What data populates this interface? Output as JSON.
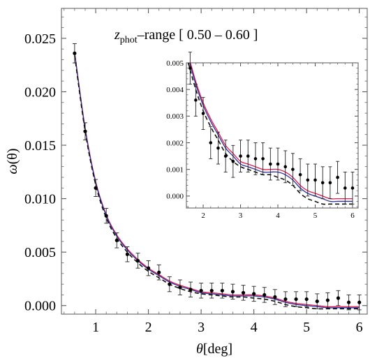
{
  "chart_data": [
    {
      "type": "scatter",
      "panel": "main",
      "title_prefix": "z",
      "title_subscript": "phot",
      "title_suffix": "–range [ 0.50 – 0.60 ]",
      "xlabel_symbol": "θ",
      "xlabel_unit": "[deg]",
      "ylabel_symbol": "ω",
      "ylabel_arg": "(θ)",
      "xlim": [
        0.35,
        6.15
      ],
      "ylim": [
        -0.0008,
        0.0278
      ],
      "xticks": [
        1,
        2,
        3,
        4,
        5,
        6
      ],
      "xtick_labels": [
        "1",
        "2",
        "3",
        "4",
        "5",
        "6"
      ],
      "yticks": [
        0.0,
        0.005,
        0.01,
        0.015,
        0.02,
        0.025
      ],
      "ytick_labels": [
        "0.000",
        "0.005",
        "0.010",
        "0.015",
        "0.020",
        "0.025"
      ],
      "points": {
        "x": [
          0.6,
          0.8,
          1.0,
          1.2,
          1.4,
          1.6,
          1.8,
          2.0,
          2.2,
          2.4,
          2.6,
          2.8,
          3.0,
          3.2,
          3.4,
          3.6,
          3.8,
          4.0,
          4.2,
          4.4,
          4.6,
          4.8,
          5.0,
          5.2,
          5.4,
          5.6,
          5.8,
          6.0
        ],
        "y": [
          0.0236,
          0.0163,
          0.011,
          0.0084,
          0.0061,
          0.0048,
          0.0042,
          0.0035,
          0.0031,
          0.002,
          0.0017,
          0.0015,
          0.0014,
          0.0014,
          0.0014,
          0.0013,
          0.0012,
          0.0011,
          0.001,
          0.0008,
          0.0006,
          0.0006,
          0.0006,
          0.0004,
          0.0005,
          0.0007,
          0.0003,
          0.0003
        ],
        "err": [
          0.0009,
          0.0008,
          0.0008,
          0.0007,
          0.0007,
          0.0007,
          0.0007,
          0.0007,
          0.0007,
          0.0007,
          0.0007,
          0.0007,
          0.0007,
          0.0007,
          0.0007,
          0.0007,
          0.0007,
          0.0007,
          0.0007,
          0.0007,
          0.0007,
          0.0007,
          0.0007,
          0.0007,
          0.0007,
          0.0007,
          0.0007,
          0.0007
        ]
      },
      "curves": [
        {
          "style": "solid",
          "color": "#e0194d",
          "x": [
            0.6,
            0.8,
            1.0,
            1.2,
            1.4,
            1.6,
            1.8,
            2.0,
            2.2,
            2.4,
            2.6,
            2.8,
            3.0,
            3.2,
            3.4,
            3.6,
            3.8,
            4.0,
            4.2,
            4.4,
            4.6,
            4.8,
            5.0,
            5.2,
            5.4,
            5.6,
            5.8,
            6.0
          ],
          "y": [
            0.0237,
            0.0166,
            0.0116,
            0.0085,
            0.0066,
            0.0053,
            0.0043,
            0.0035,
            0.0029,
            0.0023,
            0.0019,
            0.0016,
            0.0013,
            0.0012,
            0.0011,
            0.001,
            0.001,
            0.001,
            0.0009,
            0.0007,
            0.0004,
            0.0002,
            0.0001,
            0.0,
            -0.0001,
            -0.0001,
            -0.0001,
            -0.0001
          ]
        },
        {
          "style": "solid",
          "color": "#2b2f9e",
          "x": [
            0.6,
            0.8,
            1.0,
            1.2,
            1.4,
            1.6,
            1.8,
            2.0,
            2.2,
            2.4,
            2.6,
            2.8,
            3.0,
            3.2,
            3.4,
            3.6,
            3.8,
            4.0,
            4.2,
            4.4,
            4.6,
            4.8,
            5.0,
            5.2,
            5.4,
            5.6,
            5.8,
            6.0
          ],
          "y": [
            0.0236,
            0.0165,
            0.0115,
            0.0084,
            0.0065,
            0.0052,
            0.0042,
            0.0034,
            0.0028,
            0.0022,
            0.0018,
            0.0015,
            0.0012,
            0.0011,
            0.001,
            0.0009,
            0.0009,
            0.0009,
            0.0008,
            0.0006,
            0.0003,
            0.0001,
            0.0,
            -0.0001,
            -0.0002,
            -0.0002,
            -0.0002,
            -0.0002
          ]
        },
        {
          "style": "dashed",
          "color": "#111111",
          "x": [
            0.6,
            0.8,
            1.0,
            1.2,
            1.4,
            1.6,
            1.8,
            2.0,
            2.2,
            2.4,
            2.6,
            2.8,
            3.0,
            3.2,
            3.4,
            3.6,
            3.8,
            4.0,
            4.2,
            4.4,
            4.6,
            4.8,
            5.0,
            5.2,
            5.4,
            5.6,
            5.8,
            6.0
          ],
          "y": [
            0.0234,
            0.0163,
            0.0113,
            0.0082,
            0.0063,
            0.005,
            0.004,
            0.0032,
            0.0026,
            0.002,
            0.0016,
            0.0013,
            0.0011,
            0.001,
            0.0009,
            0.0008,
            0.0008,
            0.0007,
            0.0006,
            0.0004,
            0.0001,
            -0.0001,
            -0.0002,
            -0.0003,
            -0.0003,
            -0.0003,
            -0.0003,
            -0.0003
          ]
        }
      ]
    },
    {
      "type": "scatter",
      "panel": "inset",
      "xlim": [
        1.55,
        6.15
      ],
      "ylim": [
        -0.00045,
        0.005
      ],
      "xticks": [
        2,
        3,
        4,
        5,
        6
      ],
      "xtick_labels": [
        "2",
        "3",
        "4",
        "5",
        "6"
      ],
      "yticks": [
        0.0,
        0.001,
        0.002,
        0.003,
        0.004,
        0.005
      ],
      "ytick_labels": [
        "0.000",
        "0.001",
        "0.002",
        "0.003",
        "0.004",
        "0.005"
      ],
      "points": {
        "x": [
          1.65,
          1.8,
          2.0,
          2.2,
          2.4,
          2.6,
          2.8,
          3.0,
          3.2,
          3.4,
          3.6,
          3.8,
          4.0,
          4.2,
          4.4,
          4.6,
          4.8,
          5.0,
          5.2,
          5.4,
          5.6,
          5.8,
          6.0
        ],
        "y": [
          0.0048,
          0.0036,
          0.0031,
          0.002,
          0.0018,
          0.0015,
          0.0013,
          0.0015,
          0.0015,
          0.0014,
          0.0014,
          0.0012,
          0.0012,
          0.0011,
          0.001,
          0.0008,
          0.0006,
          0.0006,
          0.0005,
          0.0005,
          0.0007,
          0.0003,
          0.0003
        ],
        "err": [
          0.0006,
          0.0006,
          0.0006,
          0.0006,
          0.0006,
          0.0006,
          0.0006,
          0.0006,
          0.0006,
          0.0006,
          0.0006,
          0.0006,
          0.0006,
          0.0006,
          0.0006,
          0.0006,
          0.0006,
          0.0006,
          0.0006,
          0.0006,
          0.0006,
          0.0006,
          0.0006
        ]
      },
      "curves": [
        {
          "style": "solid",
          "color": "#e0194d",
          "x": [
            1.6,
            1.8,
            2.0,
            2.2,
            2.4,
            2.6,
            2.8,
            3.0,
            3.2,
            3.4,
            3.6,
            3.8,
            4.0,
            4.2,
            4.4,
            4.6,
            4.8,
            5.0,
            5.2,
            5.4,
            5.6,
            5.8,
            6.0
          ],
          "y": [
            0.0053,
            0.0043,
            0.0035,
            0.0029,
            0.0024,
            0.0019,
            0.0016,
            0.0013,
            0.0012,
            0.0011,
            0.001,
            0.001,
            0.001,
            0.0009,
            0.0007,
            0.0004,
            0.0002,
            0.0001,
            0.0,
            -0.0001,
            -0.0001,
            -0.0001,
            -0.0001
          ]
        },
        {
          "style": "solid",
          "color": "#2b2f9e",
          "x": [
            1.6,
            1.8,
            2.0,
            2.2,
            2.4,
            2.6,
            2.8,
            3.0,
            3.2,
            3.4,
            3.6,
            3.8,
            4.0,
            4.2,
            4.4,
            4.6,
            4.8,
            5.0,
            5.2,
            5.4,
            5.6,
            5.8,
            6.0
          ],
          "y": [
            0.0052,
            0.0042,
            0.0034,
            0.0028,
            0.0023,
            0.0018,
            0.0015,
            0.0012,
            0.0011,
            0.001,
            0.0009,
            0.0009,
            0.0009,
            0.0008,
            0.0006,
            0.0003,
            0.0001,
            0.0,
            -0.0001,
            -0.0002,
            -0.0002,
            -0.0002,
            -0.0002
          ]
        },
        {
          "style": "dashed",
          "color": "#111111",
          "x": [
            1.6,
            1.8,
            2.0,
            2.2,
            2.4,
            2.6,
            2.8,
            3.0,
            3.2,
            3.4,
            3.6,
            3.8,
            4.0,
            4.2,
            4.4,
            4.6,
            4.8,
            5.0,
            5.2,
            5.4,
            5.6,
            5.8,
            6.0
          ],
          "y": [
            0.005,
            0.004,
            0.0032,
            0.0026,
            0.0021,
            0.0016,
            0.0013,
            0.0011,
            0.001,
            0.0009,
            0.0008,
            0.0008,
            0.0007,
            0.0006,
            0.0004,
            0.0001,
            -0.0001,
            -0.0002,
            -0.0003,
            -0.0003,
            -0.0003,
            -0.0003,
            -0.0003
          ]
        }
      ]
    }
  ]
}
